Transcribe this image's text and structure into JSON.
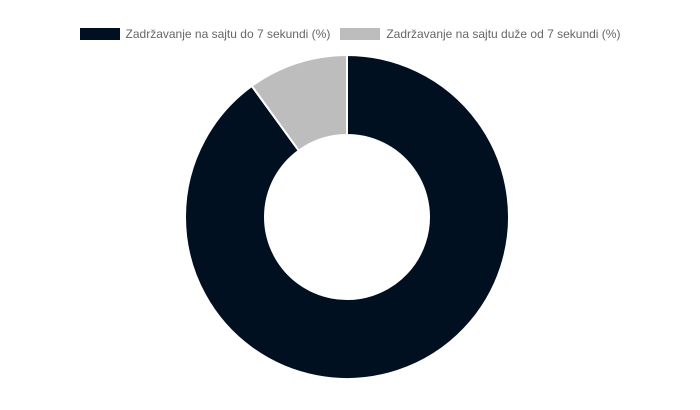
{
  "chart_data": {
    "type": "doughnut",
    "categories": [
      "Zadržavanje na sajtu do 7 sekundi (%)",
      "Zadržavanje na sajtu duže od 7 sekundi (%)"
    ],
    "values": [
      90,
      10
    ],
    "colors": [
      "#001021",
      "#bdbdbd"
    ],
    "legend_position": "top"
  }
}
